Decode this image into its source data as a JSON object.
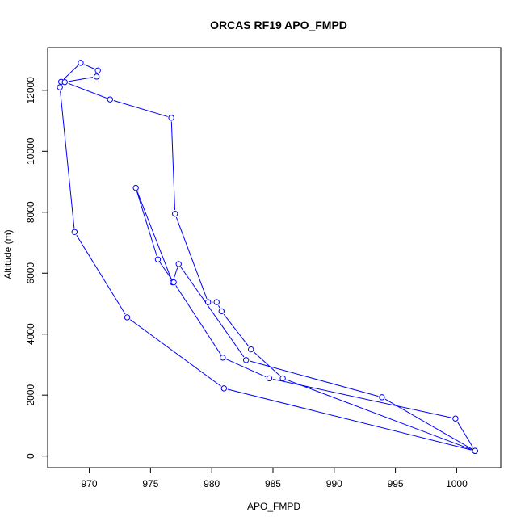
{
  "chart_data": {
    "type": "line",
    "title": "ORCAS RF19 APO_FMPD",
    "xlabel": "APO_FMPD",
    "ylabel": "Altitude (m)",
    "xlim": [
      966.6,
      1003.6
    ],
    "ylim": [
      -380,
      13400
    ],
    "xticks": [
      970,
      975,
      980,
      985,
      990,
      995,
      1000
    ],
    "yticks": [
      0,
      2000,
      4000,
      6000,
      8000,
      10000,
      12000
    ],
    "grid": false,
    "legend": "none",
    "series_color": "#0000ff",
    "x": [
      967.7,
      969.3,
      970.7,
      970.6,
      968.0,
      971.7,
      976.7,
      977.0,
      979.7,
      980.4,
      980.8,
      983.2,
      985.8,
      1001.5,
      993.9,
      982.8,
      977.3,
      976.8,
      973.8,
      975.6,
      976.9,
      980.9,
      984.7,
      999.9,
      1001.5,
      981.0,
      973.1,
      968.8,
      967.6
    ],
    "y": [
      12280,
      12900,
      12650,
      12450,
      12270,
      11700,
      11100,
      7950,
      5050,
      5050,
      4750,
      3500,
      2550,
      170,
      1930,
      3150,
      6300,
      5700,
      8800,
      6450,
      5700,
      3230,
      2550,
      1230,
      170,
      2220,
      4550,
      7350,
      12100
    ]
  }
}
